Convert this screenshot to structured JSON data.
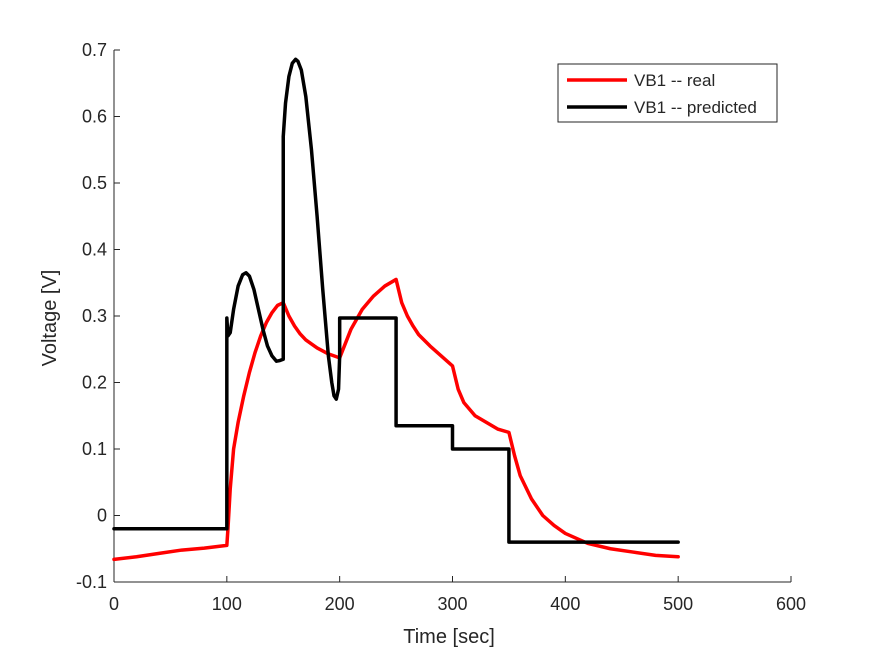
{
  "chart_data": {
    "type": "line",
    "title": "",
    "xlabel": "Time [sec]",
    "ylabel": "Voltage [V]",
    "xlim": [
      0,
      600
    ],
    "ylim": [
      -0.1,
      0.7
    ],
    "xticks": [
      0,
      100,
      200,
      300,
      400,
      500,
      600
    ],
    "yticks": [
      -0.1,
      0,
      0.1,
      0.2,
      0.3,
      0.4,
      0.5,
      0.6,
      0.7
    ],
    "xtick_labels": [
      "0",
      "100",
      "200",
      "300",
      "400",
      "500",
      "600"
    ],
    "ytick_labels": [
      "-0.1",
      "0",
      "0.1",
      "0.2",
      "0.3",
      "0.4",
      "0.5",
      "0.6",
      "0.7"
    ],
    "grid": false,
    "legend_position": "top-right",
    "series": [
      {
        "name": "VB1 -- real",
        "color": "#ff0000",
        "x": [
          0,
          20,
          40,
          60,
          80,
          100,
          101,
          103,
          106,
          110,
          115,
          120,
          125,
          130,
          135,
          140,
          145,
          150,
          155,
          160,
          165,
          170,
          180,
          190,
          200,
          210,
          220,
          230,
          240,
          250,
          255,
          260,
          265,
          270,
          280,
          290,
          300,
          305,
          310,
          320,
          330,
          340,
          350,
          355,
          360,
          370,
          380,
          390,
          400,
          420,
          440,
          460,
          480,
          500
        ],
        "y": [
          -0.066,
          -0.062,
          -0.057,
          -0.052,
          -0.049,
          -0.045,
          -0.02,
          0.04,
          0.1,
          0.14,
          0.18,
          0.215,
          0.245,
          0.27,
          0.29,
          0.305,
          0.316,
          0.32,
          0.3,
          0.285,
          0.273,
          0.264,
          0.252,
          0.243,
          0.237,
          0.28,
          0.31,
          0.33,
          0.345,
          0.355,
          0.32,
          0.3,
          0.285,
          0.272,
          0.255,
          0.24,
          0.225,
          0.19,
          0.17,
          0.15,
          0.14,
          0.13,
          0.125,
          0.09,
          0.06,
          0.025,
          0.0,
          -0.015,
          -0.027,
          -0.042,
          -0.05,
          -0.055,
          -0.06,
          -0.062
        ]
      },
      {
        "name": "VB1 -- predicted",
        "color": "#000000",
        "x": [
          0,
          100,
          100,
          101,
          103,
          106,
          110,
          114,
          117,
          120,
          124,
          128,
          132,
          136,
          140,
          144,
          147,
          150,
          150,
          150,
          152,
          155,
          158,
          161,
          163,
          166,
          170,
          175,
          180,
          185,
          190,
          193,
          195,
          197,
          199,
          200,
          200,
          250,
          250,
          300,
          300,
          350,
          350,
          500
        ],
        "y": [
          -0.02,
          -0.02,
          0.297,
          0.27,
          0.275,
          0.31,
          0.345,
          0.362,
          0.365,
          0.36,
          0.34,
          0.31,
          0.28,
          0.255,
          0.24,
          0.232,
          0.233,
          0.235,
          0.57,
          0.57,
          0.62,
          0.66,
          0.68,
          0.686,
          0.683,
          0.67,
          0.63,
          0.55,
          0.45,
          0.34,
          0.24,
          0.2,
          0.18,
          0.175,
          0.19,
          0.24,
          0.297,
          0.297,
          0.135,
          0.135,
          0.1,
          0.1,
          -0.04,
          -0.04
        ]
      }
    ]
  }
}
